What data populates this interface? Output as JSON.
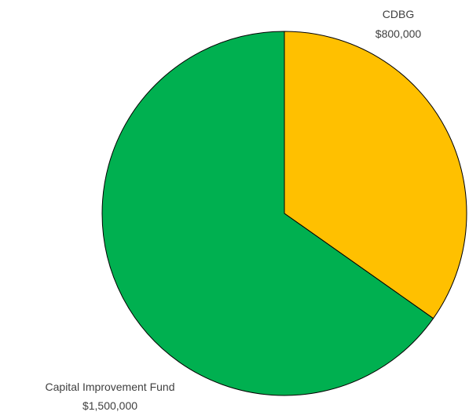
{
  "chart_data": {
    "type": "pie",
    "title": "",
    "slices": [
      {
        "label": "CDBG",
        "value_label": "$800,000",
        "value": 800000,
        "color": "#ffc000"
      },
      {
        "label": "Capital Improvement Fund",
        "value_label": "$1,500,000",
        "value": 1500000,
        "color": "#00b050"
      }
    ],
    "start_angle": "12 o'clock",
    "direction": "clockwise",
    "legend": "none"
  }
}
